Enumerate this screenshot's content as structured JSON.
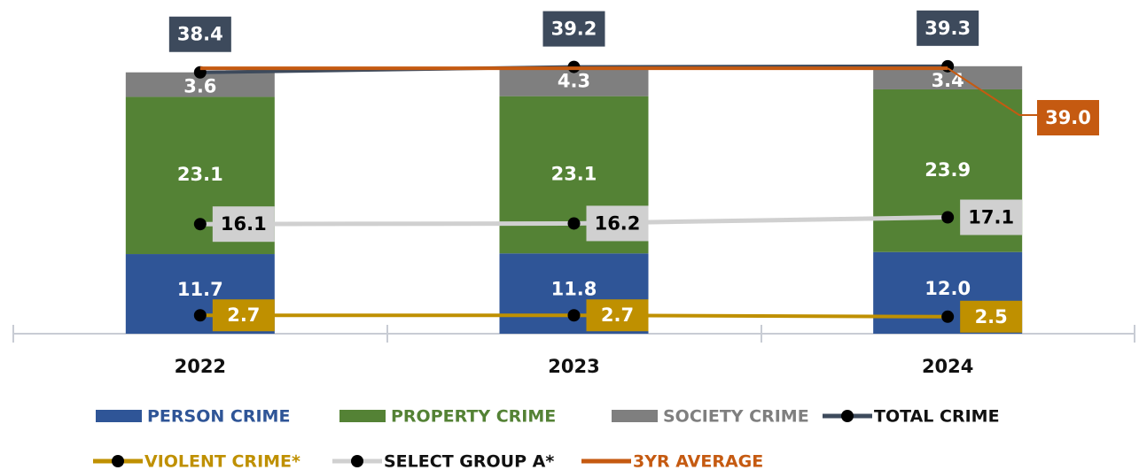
{
  "chart_data": {
    "type": "bar",
    "categories": [
      "2022",
      "2023",
      "2024"
    ],
    "ylim": [
      0,
      45
    ],
    "series": [
      {
        "name": "PERSON CRIME",
        "type": "bar",
        "color": "#2f5597",
        "values": [
          11.7,
          11.8,
          12.0
        ],
        "value_labels": [
          "11.7",
          "11.8",
          "12.0"
        ]
      },
      {
        "name": "PROPERTY CRIME",
        "type": "bar",
        "color": "#548235",
        "values": [
          23.1,
          23.1,
          23.9
        ]
      },
      {
        "name": "SOCIETY CRIME",
        "type": "bar",
        "color": "#7f7f7f",
        "values": [
          3.6,
          4.3,
          3.4
        ]
      },
      {
        "name": "TOTAL CRIME",
        "type": "line",
        "color": "#3d4a5c",
        "marker": true,
        "values": [
          38.4,
          39.2,
          39.3
        ]
      },
      {
        "name": "VIOLENT CRIME*",
        "type": "line",
        "color": "#bf9000",
        "marker": true,
        "values": [
          2.7,
          2.7,
          2.5
        ]
      },
      {
        "name": "SELECT GROUP A*",
        "type": "line",
        "color": "#d0d0d0",
        "marker": true,
        "values": [
          16.1,
          16.2,
          17.1
        ]
      },
      {
        "name": "3YR AVERAGE",
        "type": "line",
        "color": "#c55a11",
        "marker": false,
        "values": [
          39.0,
          39.0,
          39.0
        ],
        "value_labels": [
          null,
          null,
          "39.0"
        ]
      }
    ]
  }
}
